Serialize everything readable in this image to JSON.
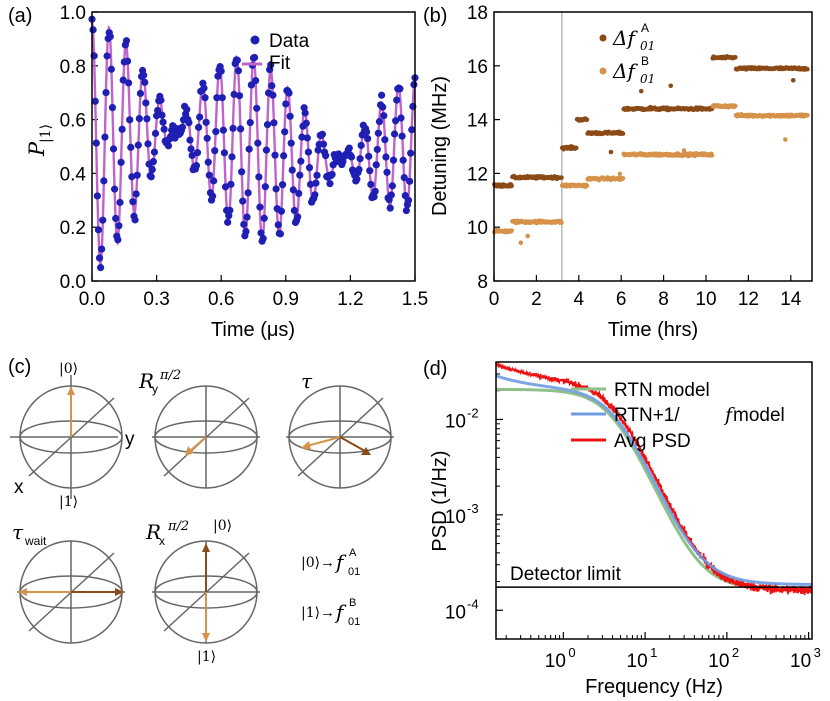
{
  "colors": {
    "data_blue": "#1f1fb4",
    "fit_purple": "#c064cc",
    "dark_brown": "#8b4a16",
    "light_brown": "#d6924a",
    "vline_gray": "#b8b8b8",
    "rtn_green": "#8fc08a",
    "rtn_1f_blue": "#6f9be3",
    "avg_red": "#ee1111",
    "sphere_gray": "#666666"
  },
  "panel_a": {
    "label": "(a)",
    "ylabel_main": "P",
    "ylabel_sub": "|1⟩",
    "xlabel": "Time (μs)",
    "legend": {
      "data": "Data",
      "fit": "Fit"
    }
  },
  "panel_b": {
    "label": "(b)",
    "ylabel": "Detuning (MHz)",
    "xlabel": "Time (hrs)",
    "legend": {
      "a_main": "Δf",
      "a_sub": "01",
      "a_sup": "A",
      "b_main": "Δf",
      "b_sub": "01",
      "b_sup": "B"
    }
  },
  "panel_c": {
    "label": "(c)",
    "ket0": "|0⟩",
    "ket1": "|1⟩",
    "axis_y": "y",
    "axis_x": "x",
    "op_ry": "R",
    "op_ry_sub": "y",
    "op_rx": "R",
    "op_rx_sub": "x",
    "op_sup": "π/2",
    "tau": "τ",
    "tau_wait": "τ",
    "tau_wait_sub": "wait",
    "map0_ket": "|0⟩",
    "map0_arrow": "→",
    "map0_f": "f",
    "map0_sub": "01",
    "map0_sup": "A",
    "map1_ket": "|1⟩",
    "map1_arrow": "→",
    "map1_f": "f",
    "map1_sub": "01",
    "map1_sup": "B"
  },
  "panel_d": {
    "label": "(d)",
    "ylabel": "PSD (1/Hz)",
    "xlabel": "Frequency (Hz)",
    "legend": {
      "rtn": "RTN model",
      "rtn1f_prefix": "RTN+1/",
      "rtn1f_f": "f",
      "rtn1f_suffix": " model",
      "avg": "Avg PSD"
    },
    "annotation": "Detector limit",
    "ytick_labels": [
      {
        "base": "10",
        "exp": "-2"
      },
      {
        "base": "10",
        "exp": "-3"
      },
      {
        "base": "10",
        "exp": "-4"
      }
    ],
    "xtick_labels": [
      {
        "base": "10",
        "exp": "0"
      },
      {
        "base": "10",
        "exp": "1"
      },
      {
        "base": "10",
        "exp": "2"
      },
      {
        "base": "10",
        "exp": "3"
      }
    ]
  },
  "chart_data": [
    {
      "type": "scatter",
      "panel": "a",
      "title": "",
      "xlabel": "Time (μs)",
      "ylabel": "P_|1⟩",
      "xlim": [
        0.0,
        1.5
      ],
      "ylim": [
        0.0,
        1.0
      ],
      "xticks": [
        "0.0",
        "0.3",
        "0.6",
        "0.9",
        "1.2",
        "1.5"
      ],
      "yticks": [
        "0.0",
        "0.2",
        "0.4",
        "0.6",
        "0.8",
        "1.0"
      ],
      "series": [
        {
          "name": "Data",
          "style": "points",
          "generator": "damped beating Ramsey oscillation",
          "params": {
            "f1_per_us": 12.0,
            "f2_per_us": 13.3,
            "offset": 0.5,
            "amplitude": 0.46,
            "decay_us": 2.4
          }
        },
        {
          "name": "Fit",
          "style": "line",
          "generator": "same model as Data, noise-free"
        }
      ]
    },
    {
      "type": "scatter",
      "panel": "b",
      "xlabel": "Time (hrs)",
      "ylabel": "Detuning (MHz)",
      "xlim": [
        0,
        15
      ],
      "ylim": [
        8,
        18
      ],
      "xticks": [
        "0",
        "2",
        "4",
        "6",
        "8",
        "10",
        "12",
        "14"
      ],
      "yticks": [
        "8",
        "10",
        "12",
        "14",
        "16",
        "18"
      ],
      "vline_x": 3.2,
      "series": [
        {
          "name": "Δf01 A",
          "segments": [
            [
              0.0,
              0.85,
              11.55
            ],
            [
              0.85,
              3.2,
              11.85
            ],
            [
              3.2,
              3.9,
              12.95
            ],
            [
              3.9,
              4.4,
              14.0
            ],
            [
              4.4,
              6.1,
              13.5
            ],
            [
              6.1,
              10.3,
              14.4
            ],
            [
              10.3,
              11.4,
              16.3
            ],
            [
              11.4,
              14.8,
              15.9
            ]
          ]
        },
        {
          "name": "Δf01 B",
          "segments": [
            [
              0.0,
              0.85,
              9.85
            ],
            [
              0.85,
              3.2,
              10.2
            ],
            [
              3.2,
              4.4,
              11.55
            ],
            [
              4.4,
              6.1,
              11.8
            ],
            [
              6.1,
              10.3,
              12.7
            ],
            [
              10.3,
              11.4,
              14.5
            ],
            [
              11.4,
              14.8,
              14.15
            ]
          ]
        }
      ]
    },
    {
      "type": "line",
      "panel": "d",
      "xscale": "log",
      "yscale": "log",
      "xlabel": "Frequency (Hz)",
      "ylabel": "PSD (1/Hz)",
      "xlim": [
        0.15,
        1100
      ],
      "ylim": [
        5e-05,
        0.04
      ],
      "detector_limit": 0.000175,
      "series": [
        {
          "name": "RTN model",
          "model": "lorentzian",
          "S0": 0.0205,
          "fc_hz": 4.0,
          "floor": 0.000168
        },
        {
          "name": "RTN+1/f model",
          "model": "lorentzian + 1/f",
          "S0": 0.0205,
          "fc_hz": 4.2,
          "floor": 0.000185,
          "one_over_f_coeff": 0.0012
        },
        {
          "name": "Avg PSD",
          "model": "measured (noisy)",
          "S0": 0.0225,
          "fc_hz": 4.3,
          "floor": 0.00016
        }
      ]
    }
  ]
}
